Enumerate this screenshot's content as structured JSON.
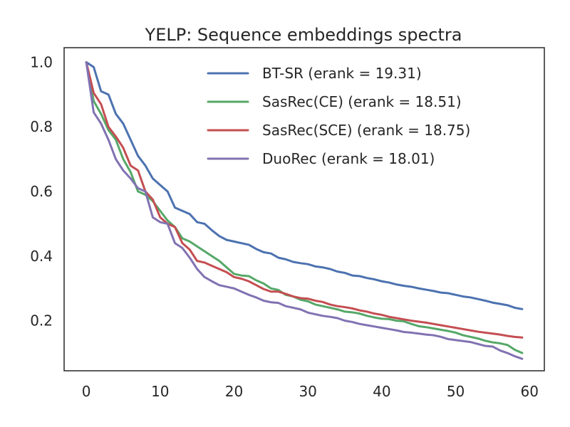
{
  "chart_data": {
    "type": "line",
    "title": "YELP: Sequence embeddings spectra",
    "xlabel": "",
    "ylabel": "",
    "xlim": [
      -3,
      62
    ],
    "ylim": [
      0.045,
      1.045
    ],
    "xticks": [
      0,
      10,
      20,
      30,
      40,
      50,
      60
    ],
    "yticks": [
      0.2,
      0.4,
      0.6,
      0.8,
      1.0
    ],
    "xtick_labels": [
      "0",
      "10",
      "20",
      "30",
      "40",
      "50",
      "60"
    ],
    "ytick_labels": [
      "0.2",
      "0.4",
      "0.6",
      "0.8",
      "1.0"
    ],
    "grid": false,
    "legend_position": "top-right",
    "series": [
      {
        "name": "BT-SR (erank = 19.31)",
        "color": "#4c72b0",
        "x": [
          0,
          1,
          2,
          3,
          4,
          5,
          6,
          7,
          8,
          9,
          10,
          11,
          12,
          13,
          14,
          15,
          16,
          17,
          18,
          19,
          20,
          21,
          22,
          23,
          24,
          25,
          26,
          27,
          28,
          29,
          30,
          31,
          32,
          33,
          34,
          35,
          36,
          37,
          38,
          39,
          40,
          41,
          42,
          43,
          44,
          45,
          46,
          47,
          48,
          49,
          50,
          51,
          52,
          53,
          54,
          55,
          56,
          57,
          58,
          59
        ],
        "values": [
          1.0,
          0.985,
          0.91,
          0.9,
          0.84,
          0.81,
          0.76,
          0.71,
          0.68,
          0.64,
          0.62,
          0.6,
          0.55,
          0.54,
          0.53,
          0.505,
          0.5,
          0.48,
          0.462,
          0.45,
          0.445,
          0.44,
          0.435,
          0.422,
          0.412,
          0.408,
          0.395,
          0.39,
          0.382,
          0.378,
          0.375,
          0.368,
          0.365,
          0.36,
          0.352,
          0.348,
          0.34,
          0.338,
          0.332,
          0.328,
          0.322,
          0.318,
          0.312,
          0.308,
          0.305,
          0.3,
          0.296,
          0.292,
          0.287,
          0.285,
          0.28,
          0.275,
          0.272,
          0.267,
          0.262,
          0.256,
          0.252,
          0.248,
          0.24,
          0.236
        ]
      },
      {
        "name": "SasRec(CE) (erank = 18.51)",
        "color": "#55a868",
        "x": [
          0,
          1,
          2,
          3,
          4,
          5,
          6,
          7,
          8,
          9,
          10,
          11,
          12,
          13,
          14,
          15,
          16,
          17,
          18,
          19,
          20,
          21,
          22,
          23,
          24,
          25,
          26,
          27,
          28,
          29,
          30,
          31,
          32,
          33,
          34,
          35,
          36,
          37,
          38,
          39,
          40,
          41,
          42,
          43,
          44,
          45,
          46,
          47,
          48,
          49,
          50,
          51,
          52,
          53,
          54,
          55,
          56,
          57,
          58,
          59
        ],
        "values": [
          1.0,
          0.88,
          0.84,
          0.79,
          0.76,
          0.7,
          0.66,
          0.6,
          0.59,
          0.57,
          0.54,
          0.51,
          0.49,
          0.455,
          0.445,
          0.43,
          0.415,
          0.4,
          0.385,
          0.365,
          0.345,
          0.34,
          0.338,
          0.325,
          0.315,
          0.3,
          0.295,
          0.28,
          0.275,
          0.265,
          0.26,
          0.25,
          0.245,
          0.24,
          0.235,
          0.228,
          0.226,
          0.222,
          0.215,
          0.21,
          0.206,
          0.205,
          0.2,
          0.198,
          0.19,
          0.183,
          0.18,
          0.176,
          0.172,
          0.168,
          0.163,
          0.155,
          0.15,
          0.145,
          0.138,
          0.133,
          0.13,
          0.125,
          0.11,
          0.1
        ]
      },
      {
        "name": "SasRec(SCE) (erank = 18.75)",
        "color": "#c44e52",
        "x": [
          0,
          1,
          2,
          3,
          4,
          5,
          6,
          7,
          8,
          9,
          10,
          11,
          12,
          13,
          14,
          15,
          16,
          17,
          18,
          19,
          20,
          21,
          22,
          23,
          24,
          25,
          26,
          27,
          28,
          29,
          30,
          31,
          32,
          33,
          34,
          35,
          36,
          37,
          38,
          39,
          40,
          41,
          42,
          43,
          44,
          45,
          46,
          47,
          48,
          49,
          50,
          51,
          52,
          53,
          54,
          55,
          56,
          57,
          58,
          59
        ],
        "values": [
          1.0,
          0.905,
          0.87,
          0.8,
          0.77,
          0.735,
          0.68,
          0.665,
          0.6,
          0.575,
          0.52,
          0.5,
          0.49,
          0.44,
          0.42,
          0.385,
          0.38,
          0.37,
          0.36,
          0.35,
          0.335,
          0.33,
          0.322,
          0.31,
          0.298,
          0.29,
          0.29,
          0.283,
          0.275,
          0.27,
          0.268,
          0.262,
          0.258,
          0.25,
          0.245,
          0.242,
          0.238,
          0.232,
          0.228,
          0.222,
          0.218,
          0.212,
          0.208,
          0.204,
          0.2,
          0.197,
          0.194,
          0.19,
          0.186,
          0.182,
          0.178,
          0.174,
          0.17,
          0.166,
          0.163,
          0.16,
          0.157,
          0.153,
          0.15,
          0.148
        ]
      },
      {
        "name": "DuoRec (erank = 18.01)",
        "color": "#8172b2",
        "x": [
          0,
          1,
          2,
          3,
          4,
          5,
          6,
          7,
          8,
          9,
          10,
          11,
          12,
          13,
          14,
          15,
          16,
          17,
          18,
          19,
          20,
          21,
          22,
          23,
          24,
          25,
          26,
          27,
          28,
          29,
          30,
          31,
          32,
          33,
          34,
          35,
          36,
          37,
          38,
          39,
          40,
          41,
          42,
          43,
          44,
          45,
          46,
          47,
          48,
          49,
          50,
          51,
          52,
          53,
          54,
          55,
          56,
          57,
          58,
          59
        ],
        "values": [
          1.0,
          0.845,
          0.81,
          0.76,
          0.7,
          0.665,
          0.64,
          0.61,
          0.6,
          0.52,
          0.505,
          0.5,
          0.44,
          0.425,
          0.395,
          0.36,
          0.335,
          0.322,
          0.31,
          0.305,
          0.3,
          0.29,
          0.28,
          0.272,
          0.262,
          0.257,
          0.255,
          0.245,
          0.24,
          0.235,
          0.225,
          0.22,
          0.215,
          0.212,
          0.208,
          0.2,
          0.196,
          0.19,
          0.186,
          0.182,
          0.178,
          0.174,
          0.17,
          0.165,
          0.163,
          0.16,
          0.157,
          0.155,
          0.15,
          0.143,
          0.14,
          0.137,
          0.134,
          0.128,
          0.122,
          0.12,
          0.108,
          0.1,
          0.09,
          0.082
        ]
      }
    ]
  }
}
